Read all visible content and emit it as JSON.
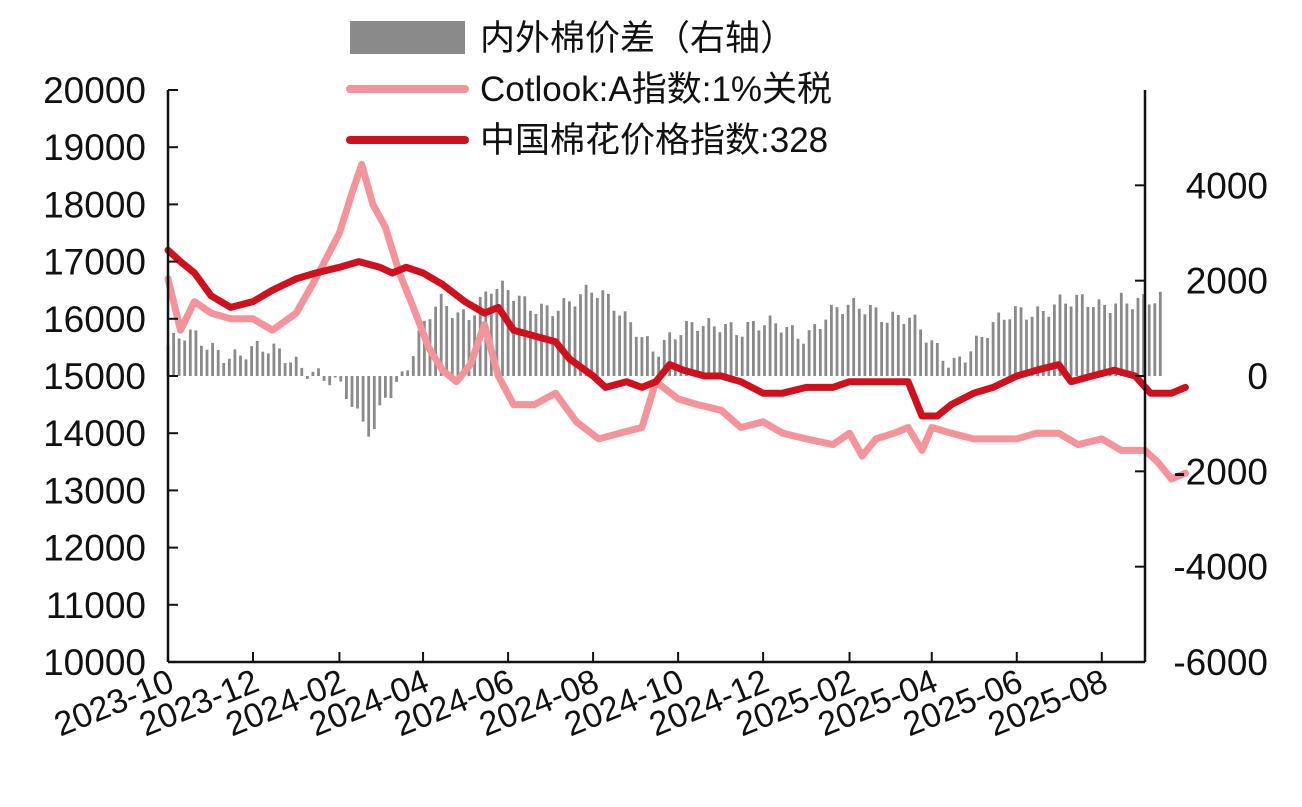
{
  "chart_data": {
    "type": "line",
    "title": "",
    "xlabel": "",
    "ylabel": "",
    "x_ticks": [
      "2023-10",
      "2023-12",
      "2024-02",
      "2024-04",
      "2024-06",
      "2024-08",
      "2024-10",
      "2024-12",
      "2025-02",
      "2025-04",
      "2025-06",
      "2025-08"
    ],
    "x_range": [
      "2023-10",
      "2025-09"
    ],
    "ylim_left": [
      10000,
      20000
    ],
    "y_ticks_left": [
      "20000",
      "19000",
      "18000",
      "17000",
      "16000",
      "15000",
      "14000",
      "13000",
      "12000",
      "11000",
      "10000"
    ],
    "ylim_right": [
      -6000,
      6000
    ],
    "y_ticks_right": [
      "4000",
      "2000",
      "0",
      "-2000",
      "-4000",
      "-6000"
    ],
    "grid": false,
    "legend_position": "top",
    "colors": {
      "spread": "#8a8a8a",
      "cotlook": "#f4939a",
      "china": "#d0101c"
    },
    "series": [
      {
        "name": "内外棉价差（右轴）",
        "type": "bar",
        "axis": "right",
        "points": [
          [
            "2023-10-01",
            650
          ],
          [
            "2023-10-15",
            800
          ],
          [
            "2023-11-01",
            600
          ],
          [
            "2023-11-15",
            500
          ],
          [
            "2023-12-01",
            550
          ],
          [
            "2023-12-15",
            450
          ],
          [
            "2024-01-01",
            300
          ],
          [
            "2024-01-15",
            150
          ],
          [
            "2024-01-25",
            -50
          ],
          [
            "2024-02-05",
            -400
          ],
          [
            "2024-02-15",
            -1000
          ],
          [
            "2024-02-25",
            -1200
          ],
          [
            "2024-03-05",
            -300
          ],
          [
            "2024-03-15",
            -50
          ],
          [
            "2024-03-25",
            500
          ],
          [
            "2024-04-05",
            1200
          ],
          [
            "2024-04-15",
            1500
          ],
          [
            "2024-04-25",
            1300
          ],
          [
            "2024-05-05",
            1400
          ],
          [
            "2024-05-20",
            1900
          ],
          [
            "2024-06-01",
            1700
          ],
          [
            "2024-06-15",
            1400
          ],
          [
            "2024-07-01",
            1500
          ],
          [
            "2024-07-15",
            1600
          ],
          [
            "2024-08-01",
            1700
          ],
          [
            "2024-08-15",
            1500
          ],
          [
            "2024-09-01",
            1100
          ],
          [
            "2024-09-15",
            500
          ],
          [
            "2024-10-01",
            800
          ],
          [
            "2024-10-15",
            1100
          ],
          [
            "2024-11-01",
            1200
          ],
          [
            "2024-11-15",
            900
          ],
          [
            "2024-12-01",
            1000
          ],
          [
            "2024-12-15",
            1100
          ],
          [
            "2025-01-01",
            900
          ],
          [
            "2025-01-15",
            1200
          ],
          [
            "2025-02-01",
            1400
          ],
          [
            "2025-02-15",
            1500
          ],
          [
            "2025-03-01",
            1300
          ],
          [
            "2025-03-15",
            1200
          ],
          [
            "2025-04-01",
            600
          ],
          [
            "2025-04-15",
            300
          ],
          [
            "2025-05-01",
            700
          ],
          [
            "2025-05-15",
            1000
          ],
          [
            "2025-06-01",
            1300
          ],
          [
            "2025-06-15",
            1400
          ],
          [
            "2025-07-01",
            1600
          ],
          [
            "2025-07-15",
            1500
          ],
          [
            "2025-08-01",
            1400
          ],
          [
            "2025-08-15",
            1700
          ],
          [
            "2025-09-01",
            1600
          ],
          [
            "2025-09-15",
            1500
          ]
        ]
      },
      {
        "name": "Cotlook:A指数:1%关税",
        "type": "line",
        "axis": "left",
        "points": [
          [
            "2023-10-01",
            16700
          ],
          [
            "2023-10-10",
            15800
          ],
          [
            "2023-10-20",
            16300
          ],
          [
            "2023-11-01",
            16100
          ],
          [
            "2023-11-15",
            16000
          ],
          [
            "2023-12-01",
            16000
          ],
          [
            "2023-12-15",
            15800
          ],
          [
            "2024-01-01",
            16100
          ],
          [
            "2024-01-15",
            16700
          ],
          [
            "2024-02-01",
            17500
          ],
          [
            "2024-02-10",
            18200
          ],
          [
            "2024-02-17",
            18700
          ],
          [
            "2024-02-25",
            18000
          ],
          [
            "2024-03-05",
            17600
          ],
          [
            "2024-03-15",
            16800
          ],
          [
            "2024-03-25",
            16200
          ],
          [
            "2024-04-05",
            15500
          ],
          [
            "2024-04-15",
            15100
          ],
          [
            "2024-04-25",
            14900
          ],
          [
            "2024-05-05",
            15200
          ],
          [
            "2024-05-15",
            15900
          ],
          [
            "2024-05-25",
            15000
          ],
          [
            "2024-06-05",
            14500
          ],
          [
            "2024-06-20",
            14500
          ],
          [
            "2024-07-05",
            14700
          ],
          [
            "2024-07-20",
            14200
          ],
          [
            "2024-08-05",
            13900
          ],
          [
            "2024-08-20",
            14000
          ],
          [
            "2024-09-05",
            14100
          ],
          [
            "2024-09-15",
            14900
          ],
          [
            "2024-10-01",
            14600
          ],
          [
            "2024-10-15",
            14500
          ],
          [
            "2024-11-01",
            14400
          ],
          [
            "2024-11-15",
            14100
          ],
          [
            "2024-12-01",
            14200
          ],
          [
            "2024-12-15",
            14000
          ],
          [
            "2025-01-01",
            13900
          ],
          [
            "2025-01-20",
            13800
          ],
          [
            "2025-02-01",
            14000
          ],
          [
            "2025-02-10",
            13600
          ],
          [
            "2025-02-20",
            13900
          ],
          [
            "2025-03-05",
            14000
          ],
          [
            "2025-03-15",
            14100
          ],
          [
            "2025-03-25",
            13700
          ],
          [
            "2025-04-01",
            14100
          ],
          [
            "2025-04-15",
            14000
          ],
          [
            "2025-05-01",
            13900
          ],
          [
            "2025-05-15",
            13900
          ],
          [
            "2025-06-01",
            13900
          ],
          [
            "2025-06-15",
            14000
          ],
          [
            "2025-07-01",
            14000
          ],
          [
            "2025-07-15",
            13800
          ],
          [
            "2025-08-01",
            13900
          ],
          [
            "2025-08-15",
            13700
          ],
          [
            "2025-09-01",
            13700
          ],
          [
            "2025-09-10",
            13500
          ],
          [
            "2025-09-20",
            13200
          ],
          [
            "2025-09-30",
            13300
          ]
        ]
      },
      {
        "name": "中国棉花价格指数:328",
        "type": "line",
        "axis": "left",
        "points": [
          [
            "2023-10-01",
            17200
          ],
          [
            "2023-10-10",
            17000
          ],
          [
            "2023-10-20",
            16800
          ],
          [
            "2023-11-01",
            16400
          ],
          [
            "2023-11-15",
            16200
          ],
          [
            "2023-12-01",
            16300
          ],
          [
            "2023-12-15",
            16500
          ],
          [
            "2024-01-01",
            16700
          ],
          [
            "2024-01-15",
            16800
          ],
          [
            "2024-02-01",
            16900
          ],
          [
            "2024-02-15",
            17000
          ],
          [
            "2024-03-01",
            16900
          ],
          [
            "2024-03-10",
            16800
          ],
          [
            "2024-03-20",
            16900
          ],
          [
            "2024-04-01",
            16800
          ],
          [
            "2024-04-15",
            16600
          ],
          [
            "2024-05-01",
            16300
          ],
          [
            "2024-05-15",
            16100
          ],
          [
            "2024-05-25",
            16200
          ],
          [
            "2024-06-05",
            15800
          ],
          [
            "2024-06-20",
            15700
          ],
          [
            "2024-07-05",
            15600
          ],
          [
            "2024-07-15",
            15300
          ],
          [
            "2024-08-01",
            15000
          ],
          [
            "2024-08-10",
            14800
          ],
          [
            "2024-08-25",
            14900
          ],
          [
            "2024-09-05",
            14800
          ],
          [
            "2024-09-15",
            14900
          ],
          [
            "2024-09-25",
            15200
          ],
          [
            "2024-10-05",
            15100
          ],
          [
            "2024-10-20",
            15000
          ],
          [
            "2024-11-01",
            15000
          ],
          [
            "2024-11-15",
            14900
          ],
          [
            "2024-12-01",
            14700
          ],
          [
            "2024-12-15",
            14700
          ],
          [
            "2025-01-01",
            14800
          ],
          [
            "2025-01-20",
            14800
          ],
          [
            "2025-02-01",
            14900
          ],
          [
            "2025-02-15",
            14900
          ],
          [
            "2025-03-01",
            14900
          ],
          [
            "2025-03-15",
            14900
          ],
          [
            "2025-03-25",
            14300
          ],
          [
            "2025-04-05",
            14300
          ],
          [
            "2025-04-15",
            14500
          ],
          [
            "2025-05-01",
            14700
          ],
          [
            "2025-05-15",
            14800
          ],
          [
            "2025-06-01",
            15000
          ],
          [
            "2025-06-15",
            15100
          ],
          [
            "2025-07-01",
            15200
          ],
          [
            "2025-07-10",
            14900
          ],
          [
            "2025-07-25",
            15000
          ],
          [
            "2025-08-10",
            15100
          ],
          [
            "2025-08-25",
            15000
          ],
          [
            "2025-09-05",
            14700
          ],
          [
            "2025-09-20",
            14700
          ],
          [
            "2025-09-30",
            14800
          ]
        ]
      }
    ]
  }
}
